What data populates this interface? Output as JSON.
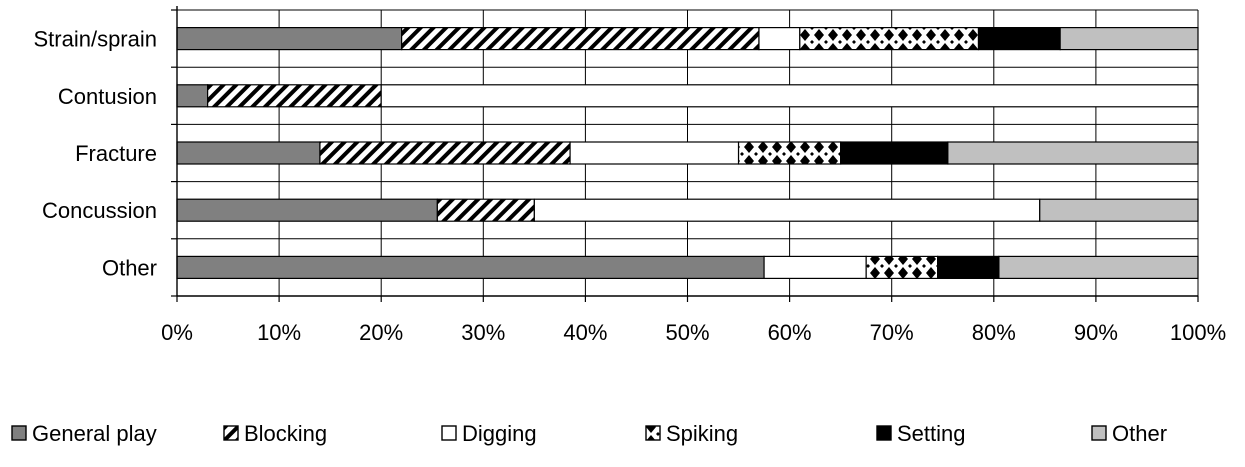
{
  "chart_data": {
    "type": "bar",
    "orientation": "horizontal",
    "stacked": true,
    "percent": true,
    "categories": [
      "Strain/sprain",
      "Contusion",
      "Fracture",
      "Concussion",
      "Other"
    ],
    "series": [
      {
        "name": "General play",
        "values": [
          22,
          3,
          14,
          25.5,
          57.5
        ],
        "color": "#808080",
        "pattern": "solid"
      },
      {
        "name": "Blocking",
        "values": [
          35,
          17,
          24.5,
          9.5,
          0
        ],
        "color": "#000000",
        "pattern": "diagonal-stripes"
      },
      {
        "name": "Digging",
        "values": [
          4,
          80,
          16.5,
          49.5,
          10
        ],
        "color": "#ffffff",
        "pattern": "solid"
      },
      {
        "name": "Spiking",
        "values": [
          17.5,
          0,
          10,
          0,
          7
        ],
        "color": "#000000",
        "pattern": "checker-diamond"
      },
      {
        "name": "Setting",
        "values": [
          8,
          0,
          10.5,
          0,
          6
        ],
        "color": "#000000",
        "pattern": "solid"
      },
      {
        "name": "Other",
        "values": [
          13.5,
          0,
          24.5,
          15.5,
          19.5
        ],
        "color": "#c0c0c0",
        "pattern": "solid"
      }
    ],
    "x_ticks": [
      "0%",
      "10%",
      "20%",
      "30%",
      "40%",
      "50%",
      "60%",
      "70%",
      "80%",
      "90%",
      "100%"
    ],
    "xlim": [
      0,
      100
    ],
    "grid": true,
    "legend_position": "bottom"
  }
}
